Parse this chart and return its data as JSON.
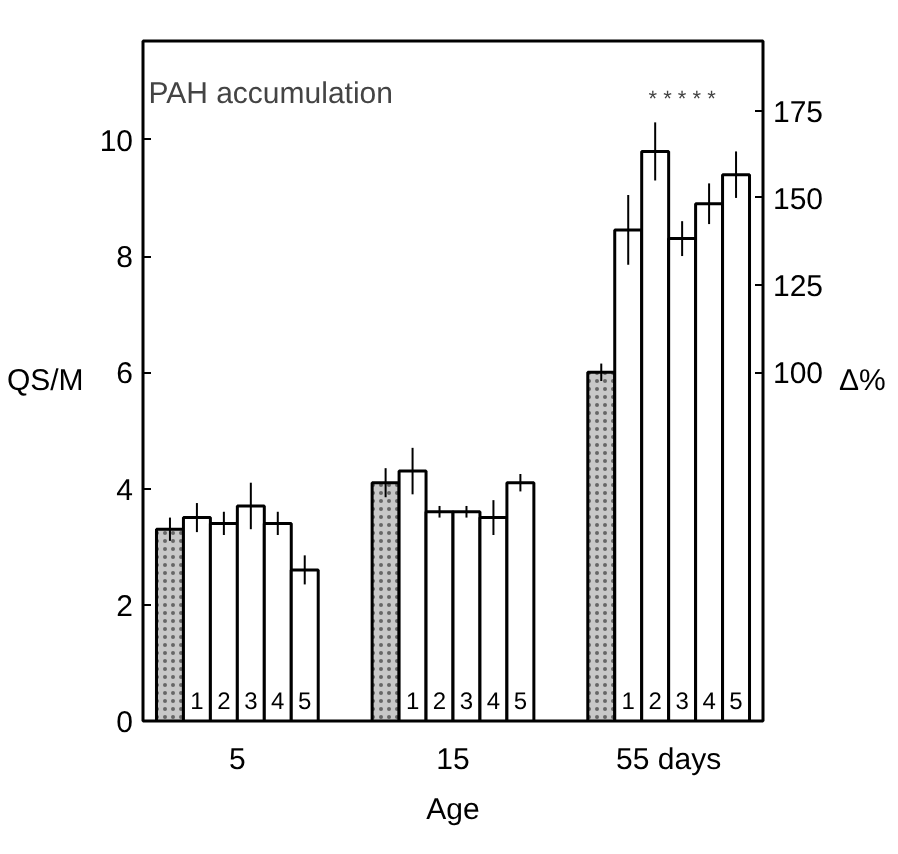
{
  "chart_data": {
    "type": "bar",
    "title": "PAH accumulation",
    "xlabel": "Age",
    "ylabel": "QS/M",
    "y2label": "Δ%",
    "categories": [
      "5",
      "15",
      "55 days"
    ],
    "series": [
      {
        "color": "#c8c8c8",
        "values": [
          3.3,
          4.1,
          6.0
        ],
        "errors": [
          0.2,
          0.25,
          0.15
        ]
      },
      {
        "name": "1",
        "color": "#ffffff",
        "values": [
          3.5,
          4.3,
          8.45
        ],
        "errors": [
          0.25,
          0.4,
          0.6
        ]
      },
      {
        "name": "2",
        "color": "#ffffff",
        "values": [
          3.4,
          3.6,
          9.8
        ],
        "errors": [
          0.2,
          0.1,
          0.5
        ]
      },
      {
        "name": "3",
        "color": "#ffffff",
        "values": [
          3.7,
          3.6,
          8.3
        ],
        "errors": [
          0.4,
          0.1,
          0.3
        ]
      },
      {
        "name": "4",
        "color": "#ffffff",
        "values": [
          3.4,
          3.5,
          8.9
        ],
        "errors": [
          0.2,
          0.3,
          0.35
        ]
      },
      {
        "name": "5",
        "color": "#ffffff",
        "values": [
          2.6,
          4.1,
          9.4
        ],
        "errors": [
          0.25,
          0.15,
          0.4
        ]
      }
    ],
    "annotations": [
      "* * * * *"
    ],
    "ylim": [
      0,
      11.7
    ],
    "yticks": [
      0,
      2,
      4,
      6,
      8,
      10
    ],
    "y2lim": [
      0,
      195
    ],
    "y2ticks": [
      100,
      125,
      150,
      175
    ],
    "grid": false
  }
}
